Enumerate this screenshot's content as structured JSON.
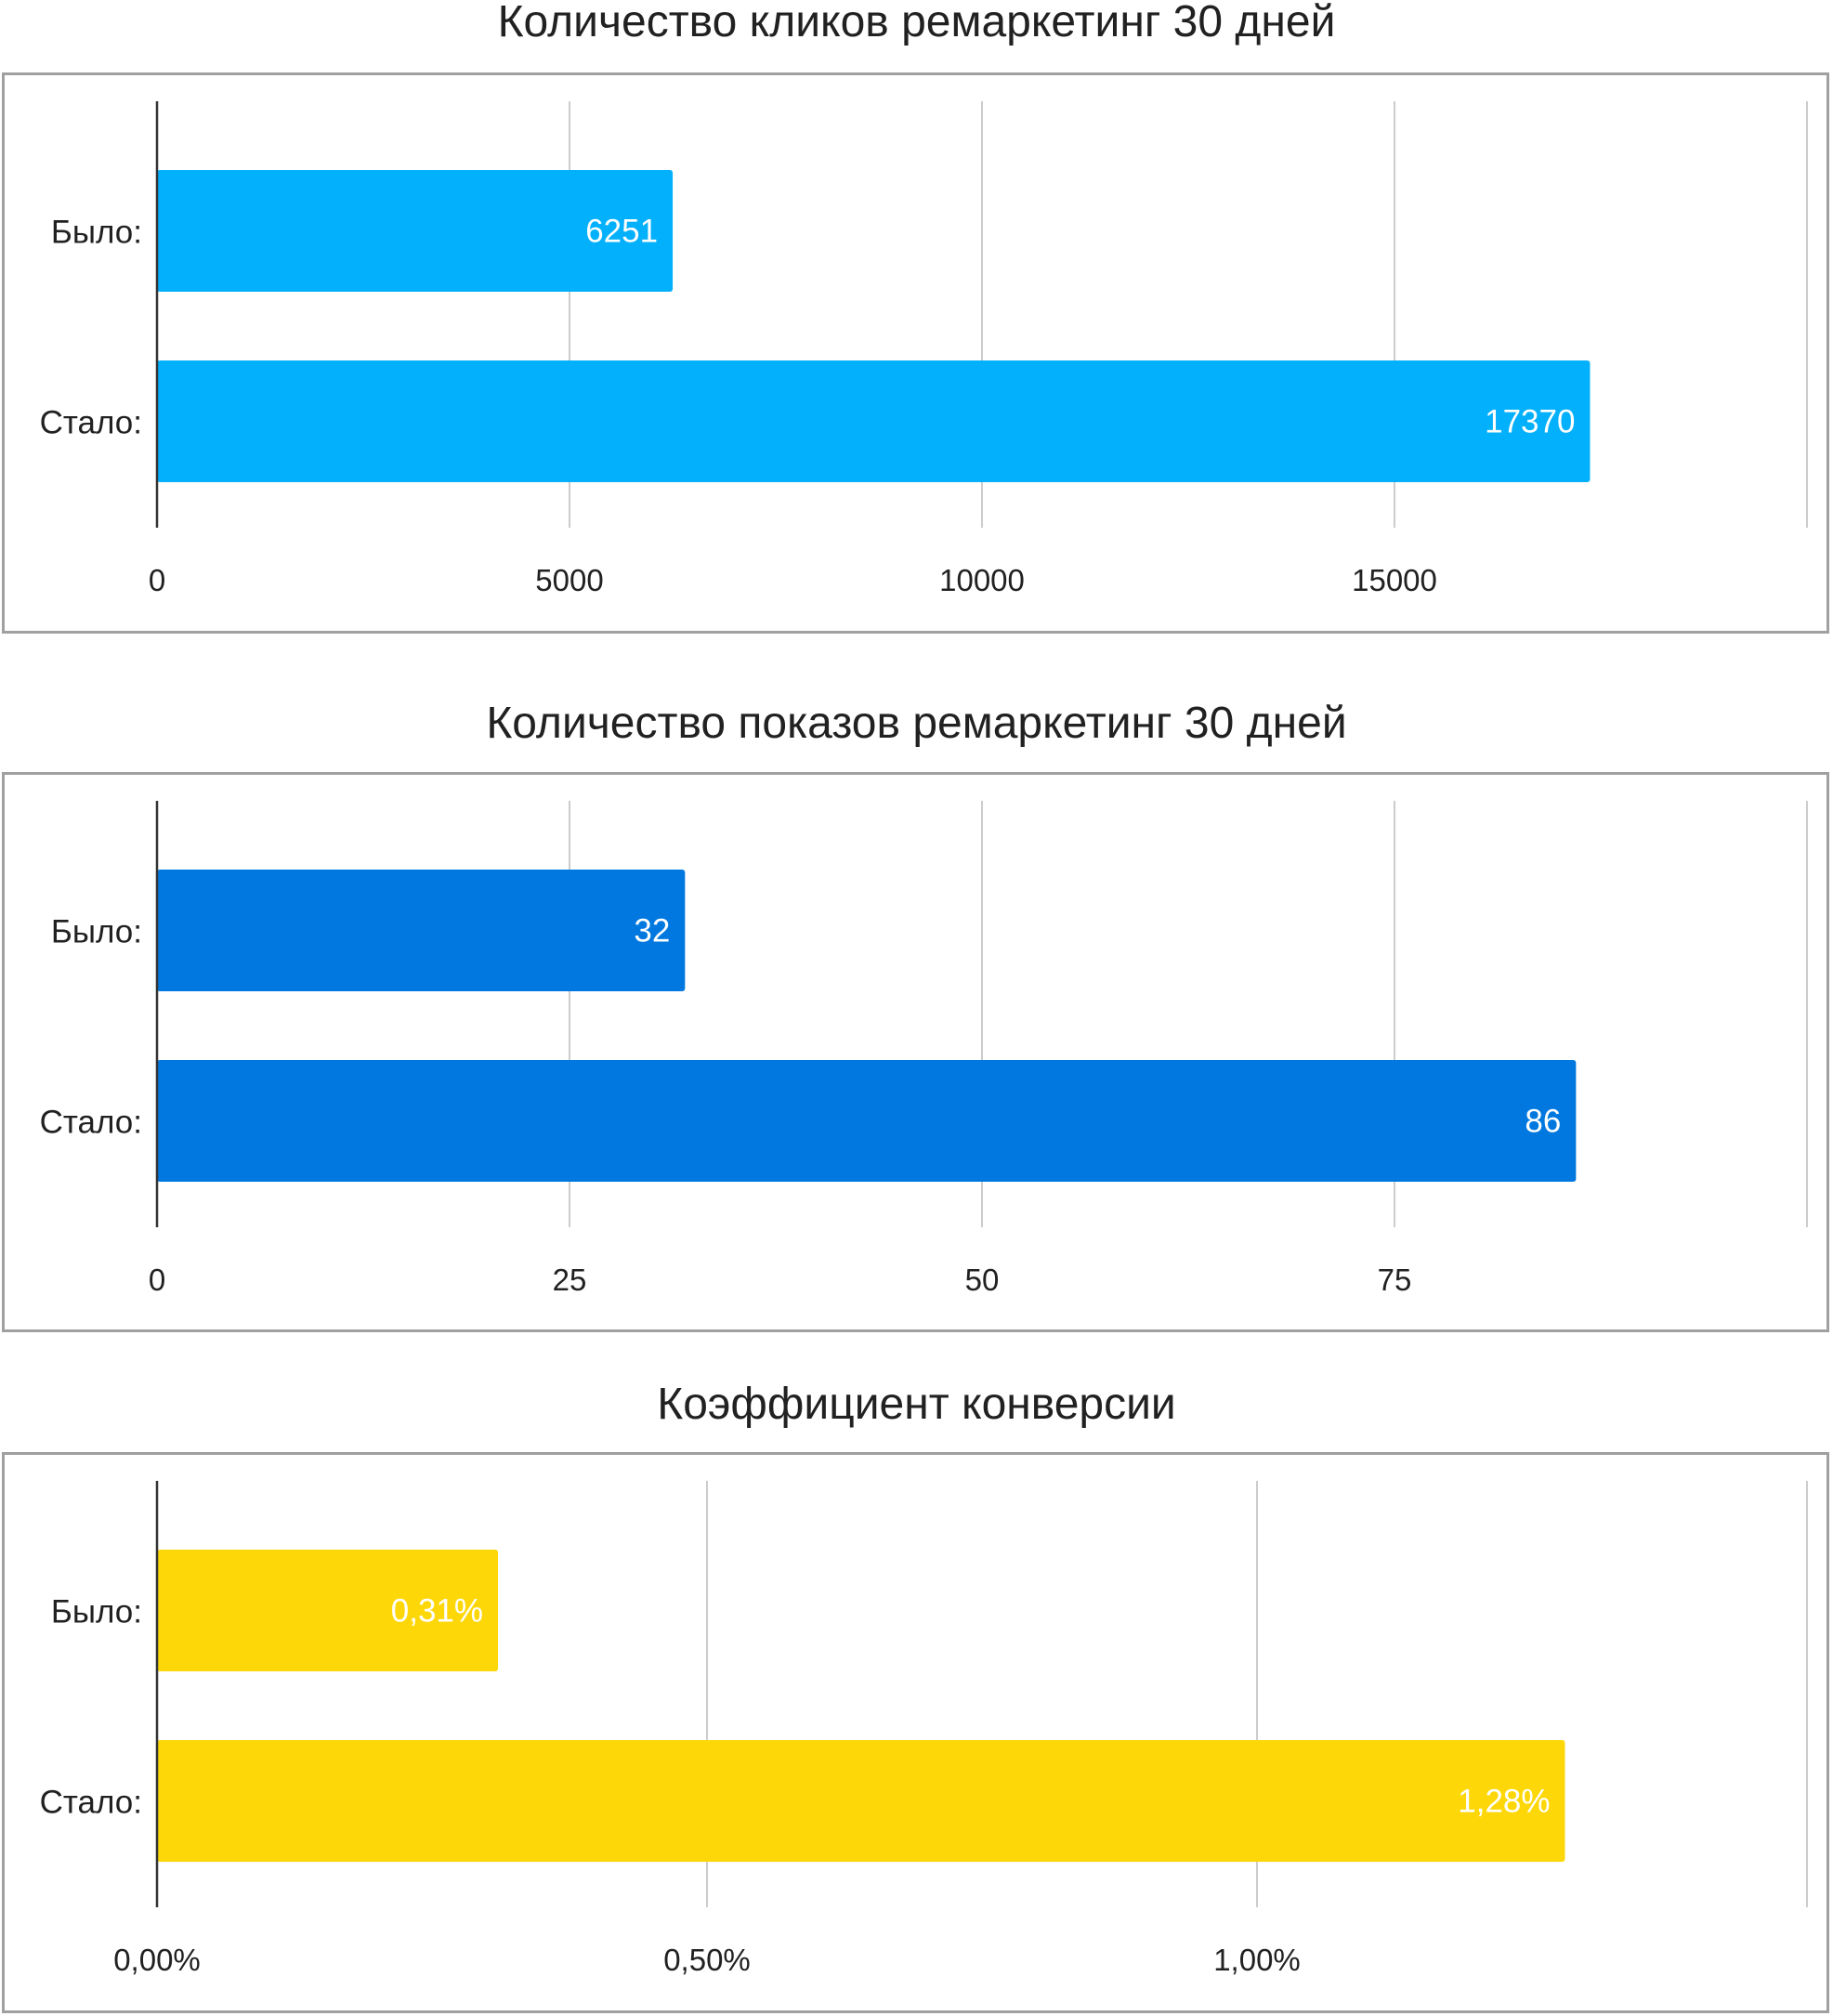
{
  "chart_data": [
    {
      "type": "bar",
      "orientation": "horizontal",
      "title": "Количество кликов ремаркетинг 30 дней",
      "categories": [
        "Было:",
        "Стало:"
      ],
      "values": [
        6251,
        17370
      ],
      "value_labels": [
        "6251",
        "17370"
      ],
      "xlim": [
        0,
        20000
      ],
      "xticks": [
        0,
        5000,
        10000,
        15000,
        20000
      ],
      "xtick_labels": [
        "0",
        "5000",
        "10000",
        "15000",
        ""
      ],
      "grid": true,
      "color": "#03b0fc"
    },
    {
      "type": "bar",
      "orientation": "horizontal",
      "title": "Количество показов ремаркетинг 30 дней",
      "categories": [
        "Было:",
        "Стало:"
      ],
      "values": [
        32,
        86
      ],
      "value_labels": [
        "32",
        "86"
      ],
      "xlim": [
        0,
        100
      ],
      "xticks": [
        0,
        25,
        50,
        75,
        100
      ],
      "xtick_labels": [
        "0",
        "25",
        "50",
        "75",
        ""
      ],
      "grid": true,
      "color": "#0078df"
    },
    {
      "type": "bar",
      "orientation": "horizontal",
      "title": "Коэффициент конверсии",
      "categories": [
        "Было:",
        "Стало:"
      ],
      "values": [
        0.31,
        1.28
      ],
      "value_labels": [
        "0,31%",
        "1,28%"
      ],
      "xlim": [
        0,
        1.5
      ],
      "xticks": [
        0,
        0.5,
        1.0,
        1.5
      ],
      "xtick_labels": [
        "0,00%",
        "0,50%",
        "1,00%",
        ""
      ],
      "grid": true,
      "color": "#fed709"
    }
  ]
}
